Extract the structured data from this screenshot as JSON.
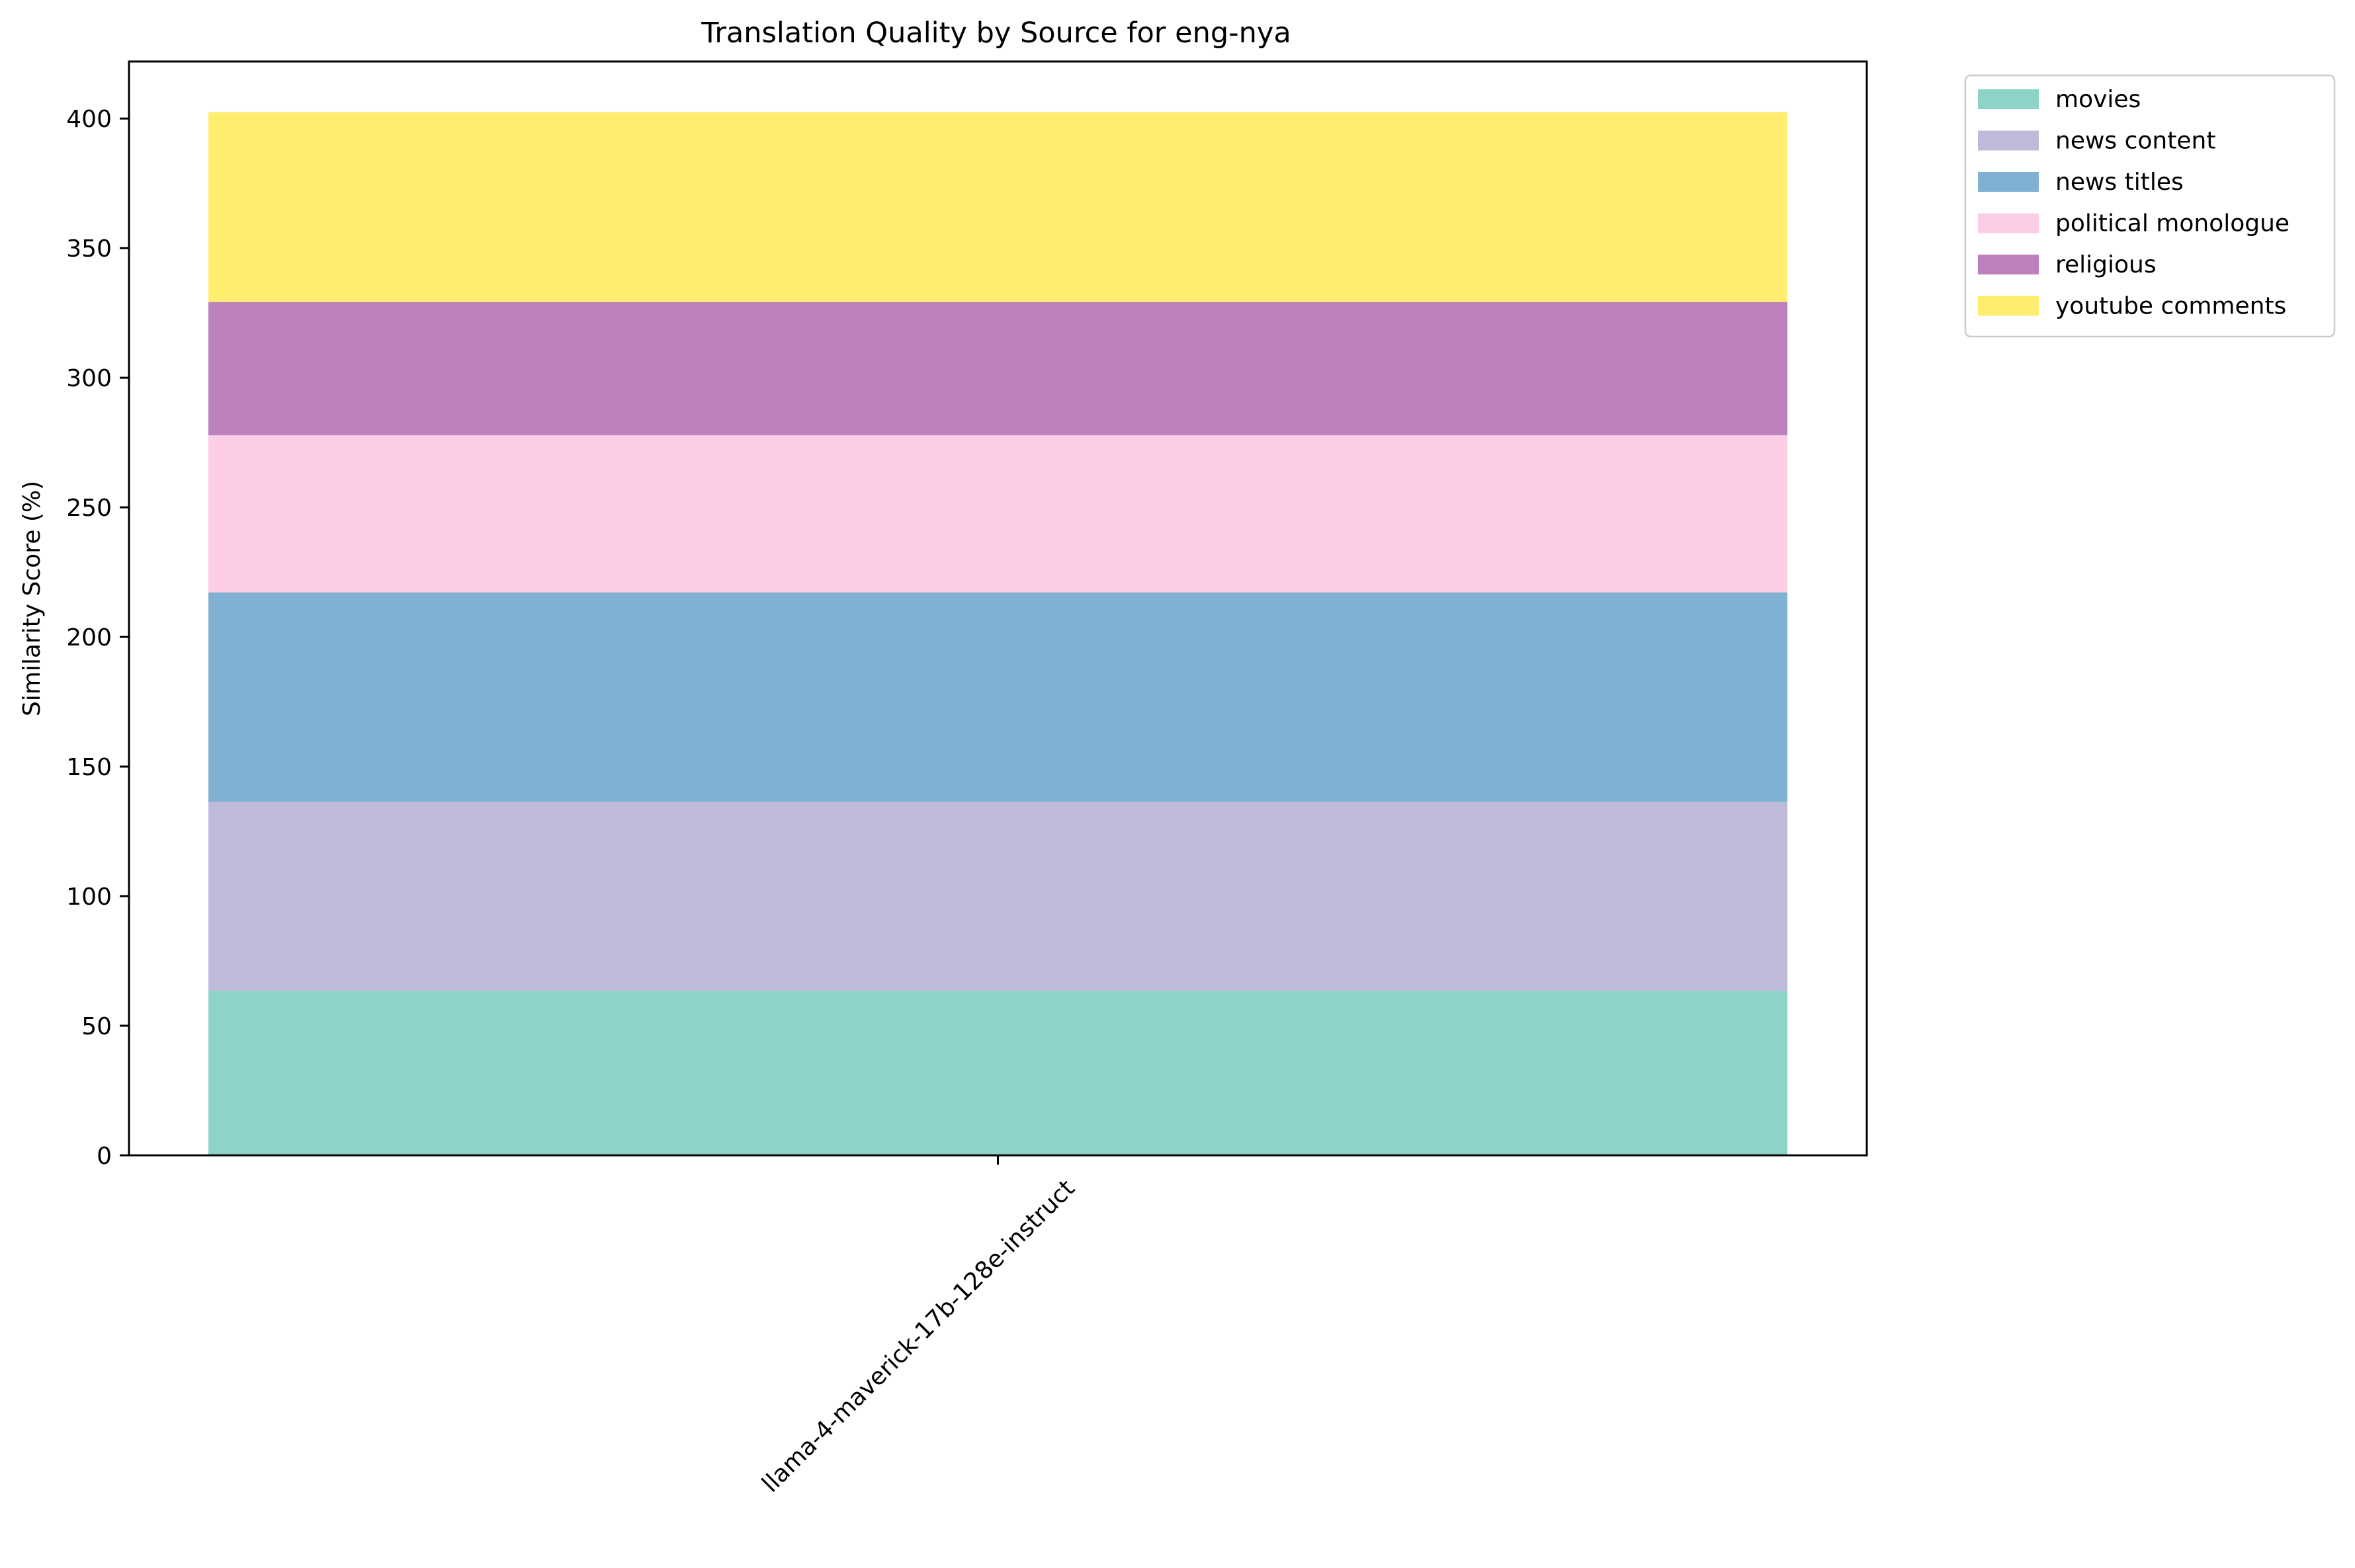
{
  "chart_data": {
    "type": "bar",
    "stacked": true,
    "title": "Translation Quality by Source for eng-nya",
    "xlabel": "",
    "ylabel": "Similarity Score (%)",
    "categories": [
      "llama-4-maverick-17b-128e-instruct"
    ],
    "ylim": [
      0,
      422
    ],
    "yticks": [
      0,
      50,
      100,
      150,
      200,
      250,
      300,
      350,
      400
    ],
    "grid": false,
    "legend_position": "outside-top-right",
    "series": [
      {
        "name": "movies",
        "color": "#8dd3c7",
        "values": [
          63.5
        ]
      },
      {
        "name": "news content",
        "color": "#bebada",
        "values": [
          72.8
        ]
      },
      {
        "name": "news titles",
        "color": "#80b1d3",
        "values": [
          80.9
        ]
      },
      {
        "name": "political monologue",
        "color": "#fccde5",
        "values": [
          60.6
        ]
      },
      {
        "name": "religious",
        "color": "#bc80bd",
        "values": [
          51.4
        ]
      },
      {
        "name": "youtube comments",
        "color": "#ffed6f",
        "values": [
          73.3
        ]
      }
    ]
  }
}
